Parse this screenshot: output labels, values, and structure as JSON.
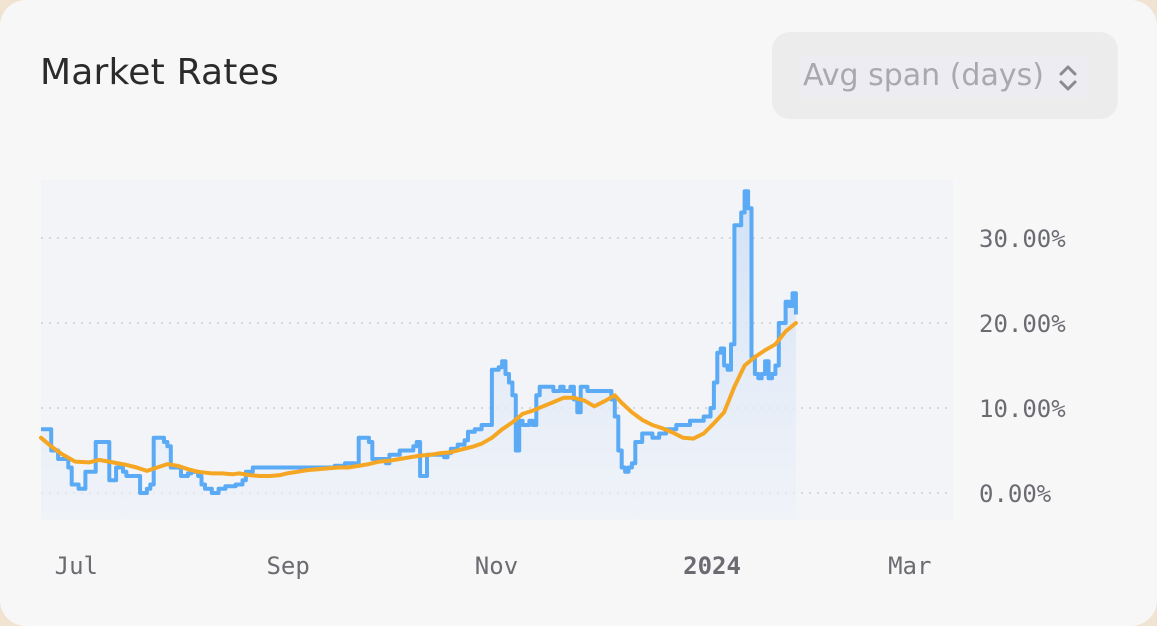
{
  "header": {
    "title": "Market Rates"
  },
  "controls": {
    "avg_span_placeholder": "Avg span (days)",
    "avg_span_icon": "updown-chevron-icon"
  },
  "colors": {
    "rate": "#5aaaf5",
    "average": "#f5a623",
    "fill": "#dce8f7",
    "grid": "#cfcfd4"
  },
  "chart_data": {
    "type": "line",
    "title": "Market Rates",
    "x_tick_labels": [
      "Jul",
      "Sep",
      "Nov",
      "2024",
      "Mar"
    ],
    "x_tick_bold": [
      false,
      false,
      false,
      true,
      false
    ],
    "y_tick_labels": [
      "30.00%",
      "20.00%",
      "10.00%",
      "0.00%"
    ],
    "ylim": [
      -3,
      36
    ],
    "y_ticks": [
      30,
      20,
      10,
      0
    ],
    "grid": true,
    "x_range": [
      "2023-06-27",
      "2024-03-20"
    ],
    "x_tick_dates": [
      "2023-07-01",
      "2023-09-01",
      "2023-11-01",
      "2024-01-01",
      "2024-03-01"
    ],
    "series": [
      {
        "values": [
          [
            0,
            7.5
          ],
          [
            2,
            7.5
          ],
          [
            3,
            5
          ],
          [
            5,
            4
          ],
          [
            7,
            4
          ],
          [
            8,
            3
          ],
          [
            9,
            1
          ],
          [
            11,
            0.5
          ],
          [
            13,
            2.5
          ],
          [
            15,
            2.5
          ],
          [
            16,
            6
          ],
          [
            19,
            6
          ],
          [
            20,
            1.5
          ],
          [
            22,
            3
          ],
          [
            24,
            2.5
          ],
          [
            25,
            2
          ],
          [
            28,
            2
          ],
          [
            29,
            0
          ],
          [
            31,
            0.5
          ],
          [
            32,
            1
          ],
          [
            33,
            6.5
          ],
          [
            36,
            6
          ],
          [
            37,
            5.5
          ],
          [
            38,
            3
          ],
          [
            40,
            3
          ],
          [
            41,
            2
          ],
          [
            43,
            2.3
          ],
          [
            44,
            2.5
          ],
          [
            46,
            2
          ],
          [
            47,
            1
          ],
          [
            48,
            0.5
          ],
          [
            50,
            0
          ],
          [
            52,
            0.5
          ],
          [
            54,
            0.8
          ],
          [
            57,
            1
          ],
          [
            59,
            1.5
          ],
          [
            60,
            2.5
          ],
          [
            62,
            3
          ],
          [
            70,
            3
          ],
          [
            80,
            3
          ],
          [
            86,
            3.2
          ],
          [
            89,
            3.5
          ],
          [
            92,
            3.2
          ],
          [
            93,
            6.5
          ],
          [
            96,
            6
          ],
          [
            97,
            4
          ],
          [
            100,
            4
          ],
          [
            101,
            3.5
          ],
          [
            102,
            4.5
          ],
          [
            104,
            4.5
          ],
          [
            105,
            5
          ],
          [
            108,
            5
          ],
          [
            109,
            5.5
          ],
          [
            110,
            6
          ],
          [
            111,
            2
          ],
          [
            113,
            4.5
          ],
          [
            117,
            4.5
          ],
          [
            118,
            4.2
          ],
          [
            119,
            4.7
          ],
          [
            120,
            5.2
          ],
          [
            122,
            5.7
          ],
          [
            124,
            6.2
          ],
          [
            125,
            7.2
          ],
          [
            127,
            7.5
          ],
          [
            128,
            7.5
          ],
          [
            129,
            8
          ],
          [
            131,
            8
          ],
          [
            132,
            14.5
          ],
          [
            134,
            14.8
          ],
          [
            135,
            15.5
          ],
          [
            136,
            14
          ],
          [
            137,
            13
          ],
          [
            138,
            11.5
          ],
          [
            139,
            5
          ],
          [
            140,
            8.5
          ],
          [
            141,
            8
          ],
          [
            143,
            8.5
          ],
          [
            144,
            8
          ],
          [
            145,
            11.5
          ],
          [
            146,
            12.5
          ],
          [
            149,
            12.5
          ],
          [
            150,
            12
          ],
          [
            152,
            12.5
          ],
          [
            153,
            12
          ],
          [
            155,
            12.5
          ],
          [
            156,
            11
          ],
          [
            157,
            9.5
          ],
          [
            158,
            12.5
          ],
          [
            160,
            12
          ],
          [
            166,
            12
          ],
          [
            167,
            11
          ],
          [
            168,
            9
          ],
          [
            169,
            5
          ],
          [
            170,
            3
          ],
          [
            171,
            2.5
          ],
          [
            172,
            3
          ],
          [
            173,
            3.5
          ],
          [
            174,
            6
          ],
          [
            176,
            7
          ],
          [
            179,
            6.5
          ],
          [
            181,
            7
          ],
          [
            183,
            7.5
          ],
          [
            185,
            7.5
          ],
          [
            186,
            8
          ],
          [
            188,
            8
          ],
          [
            190,
            8.5
          ],
          [
            193,
            8.5
          ],
          [
            194,
            9
          ],
          [
            196,
            10
          ],
          [
            197,
            13
          ],
          [
            198,
            16.5
          ],
          [
            199,
            17
          ],
          [
            200,
            15
          ],
          [
            201,
            14.5
          ],
          [
            202,
            17.5
          ],
          [
            203,
            31.5
          ],
          [
            205,
            33
          ],
          [
            206,
            35.5
          ],
          [
            207,
            33.5
          ],
          [
            208,
            16
          ],
          [
            209,
            14
          ],
          [
            210,
            13.5
          ],
          [
            211,
            14
          ],
          [
            212,
            15.5
          ],
          [
            213,
            13.5
          ],
          [
            214,
            14
          ],
          [
            215,
            15
          ],
          [
            216,
            20
          ],
          [
            217,
            20
          ],
          [
            218,
            22.5
          ],
          [
            219,
            22
          ],
          [
            220,
            23.5
          ],
          [
            221,
            21
          ]
        ]
      },
      {
        "values": [
          [
            0,
            6.5
          ],
          [
            3,
            5.5
          ],
          [
            6,
            4.6
          ],
          [
            10,
            3.7
          ],
          [
            14,
            3.6
          ],
          [
            17,
            3.9
          ],
          [
            21,
            3.6
          ],
          [
            25,
            3.3
          ],
          [
            28,
            3
          ],
          [
            31,
            2.6
          ],
          [
            34,
            3
          ],
          [
            37,
            3.4
          ],
          [
            40,
            3.2
          ],
          [
            43,
            2.8
          ],
          [
            46,
            2.5
          ],
          [
            50,
            2.3
          ],
          [
            53,
            2.3
          ],
          [
            56,
            2.2
          ],
          [
            58,
            2.3
          ],
          [
            61,
            2.1
          ],
          [
            64,
            2
          ],
          [
            67,
            2
          ],
          [
            70,
            2.1
          ],
          [
            72,
            2.3
          ],
          [
            75,
            2.5
          ],
          [
            78,
            2.7
          ],
          [
            81,
            2.8
          ],
          [
            84,
            2.9
          ],
          [
            87,
            3
          ],
          [
            90,
            3
          ],
          [
            93,
            3.2
          ],
          [
            96,
            3.4
          ],
          [
            99,
            3.7
          ],
          [
            102,
            3.8
          ],
          [
            105,
            4
          ],
          [
            108,
            4.2
          ],
          [
            111,
            4.4
          ],
          [
            114,
            4.5
          ],
          [
            117,
            4.7
          ],
          [
            120,
            4.8
          ],
          [
            123,
            5.1
          ],
          [
            126,
            5.4
          ],
          [
            129,
            5.8
          ],
          [
            132,
            6.5
          ],
          [
            135,
            7.5
          ],
          [
            138,
            8.3
          ],
          [
            141,
            9.3
          ],
          [
            144,
            9.7
          ],
          [
            147,
            10.2
          ],
          [
            150,
            10.7
          ],
          [
            153,
            11.2
          ],
          [
            156,
            11.2
          ],
          [
            159,
            10.9
          ],
          [
            162,
            10.2
          ],
          [
            165,
            10.8
          ],
          [
            168,
            11.5
          ],
          [
            170,
            10.6
          ],
          [
            173,
            9.5
          ],
          [
            176,
            8.6
          ],
          [
            179,
            8
          ],
          [
            182,
            7.6
          ],
          [
            185,
            7.1
          ],
          [
            188,
            6.5
          ],
          [
            191,
            6.4
          ],
          [
            194,
            7
          ],
          [
            197,
            8.2
          ],
          [
            200,
            9.5
          ],
          [
            203,
            12.5
          ],
          [
            206,
            15
          ],
          [
            209,
            16
          ],
          [
            212,
            16.8
          ],
          [
            215,
            17.5
          ],
          [
            218,
            19
          ],
          [
            221,
            20
          ]
        ]
      }
    ]
  }
}
